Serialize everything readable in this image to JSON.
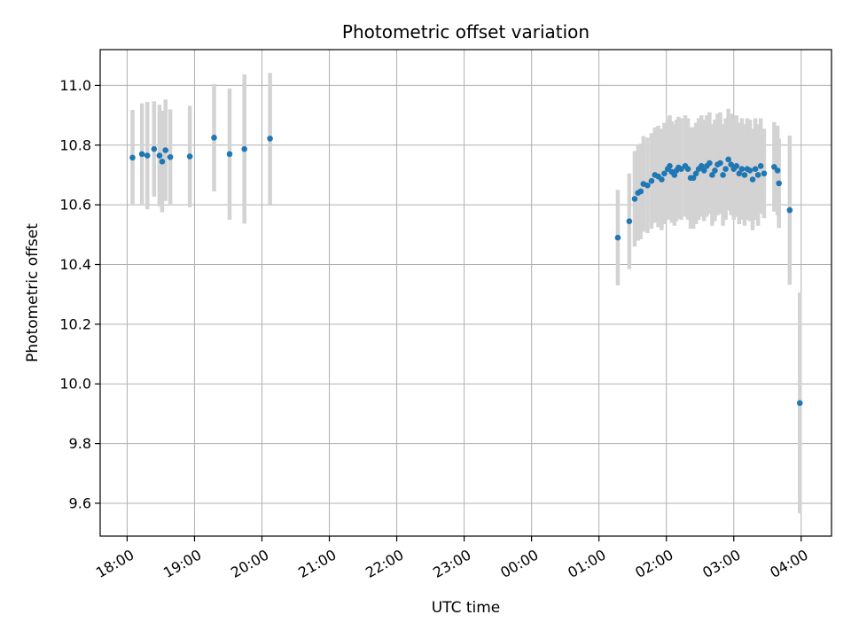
{
  "chart_data": {
    "type": "scatter",
    "title": "Photometric offset variation",
    "xlabel": "UTC time",
    "ylabel": "Photometric offset",
    "xlim_hours": [
      17.6,
      28.45
    ],
    "ylim": [
      9.49,
      11.12
    ],
    "grid": true,
    "x_tick_values_hours": [
      18,
      19,
      20,
      21,
      22,
      23,
      24,
      25,
      26,
      27,
      28
    ],
    "x_tick_labels": [
      "18:00",
      "19:00",
      "20:00",
      "21:00",
      "22:00",
      "23:00",
      "00:00",
      "01:00",
      "02:00",
      "03:00",
      "04:00"
    ],
    "y_ticks": [
      9.6,
      9.8,
      10.0,
      10.2,
      10.4,
      10.6,
      10.8,
      11.0
    ],
    "y_tick_labels": [
      "9.6",
      "9.8",
      "10.0",
      "10.2",
      "10.4",
      "10.6",
      "10.8",
      "11.0"
    ],
    "colors": {
      "point": "#1f77b4",
      "errorbar": "#d3d3d3",
      "grid": "#b0b0b0"
    },
    "series": [
      {
        "name": "Photometric offset",
        "x_hours": [
          18.08,
          18.22,
          18.3,
          18.4,
          18.48,
          18.52,
          18.57,
          18.64,
          18.93,
          19.29,
          19.52,
          19.74,
          20.12,
          25.28,
          25.45,
          25.53,
          25.58,
          25.62,
          25.66,
          25.72,
          25.78,
          25.83,
          25.88,
          25.93,
          25.97,
          26.02,
          26.05,
          26.08,
          26.12,
          26.15,
          26.18,
          26.22,
          26.28,
          26.32,
          26.36,
          26.4,
          26.44,
          26.48,
          26.52,
          26.56,
          26.6,
          26.64,
          26.68,
          26.72,
          26.76,
          26.8,
          26.84,
          26.88,
          26.92,
          26.96,
          27.0,
          27.04,
          27.08,
          27.12,
          27.16,
          27.2,
          27.24,
          27.28,
          27.32,
          27.36,
          27.4,
          27.45,
          27.6,
          27.65,
          27.67,
          27.83,
          27.98
        ],
        "y": [
          10.758,
          10.77,
          10.765,
          10.787,
          10.765,
          10.745,
          10.783,
          10.76,
          10.762,
          10.825,
          10.77,
          10.787,
          10.822,
          10.49,
          10.545,
          10.62,
          10.64,
          10.645,
          10.67,
          10.665,
          10.68,
          10.7,
          10.695,
          10.685,
          10.705,
          10.72,
          10.73,
          10.71,
          10.7,
          10.715,
          10.725,
          10.72,
          10.73,
          10.72,
          10.69,
          10.69,
          10.705,
          10.72,
          10.73,
          10.715,
          10.73,
          10.74,
          10.7,
          10.715,
          10.735,
          10.74,
          10.7,
          10.72,
          10.752,
          10.735,
          10.72,
          10.73,
          10.705,
          10.72,
          10.7,
          10.72,
          10.715,
          10.685,
          10.72,
          10.7,
          10.73,
          10.705,
          10.727,
          10.715,
          10.672,
          10.582,
          9.936
        ],
        "yerr": [
          0.16,
          0.17,
          0.18,
          0.16,
          0.17,
          0.17,
          0.17,
          0.16,
          0.17,
          0.18,
          0.22,
          0.25,
          0.22,
          0.16,
          0.16,
          0.16,
          0.16,
          0.16,
          0.16,
          0.16,
          0.16,
          0.16,
          0.17,
          0.17,
          0.17,
          0.17,
          0.17,
          0.17,
          0.17,
          0.17,
          0.17,
          0.17,
          0.17,
          0.17,
          0.17,
          0.17,
          0.17,
          0.17,
          0.17,
          0.17,
          0.17,
          0.17,
          0.17,
          0.17,
          0.17,
          0.17,
          0.17,
          0.17,
          0.17,
          0.17,
          0.17,
          0.17,
          0.17,
          0.17,
          0.17,
          0.17,
          0.17,
          0.17,
          0.17,
          0.17,
          0.16,
          0.15,
          0.15,
          0.15,
          0.15,
          0.25,
          0.37
        ]
      }
    ]
  }
}
